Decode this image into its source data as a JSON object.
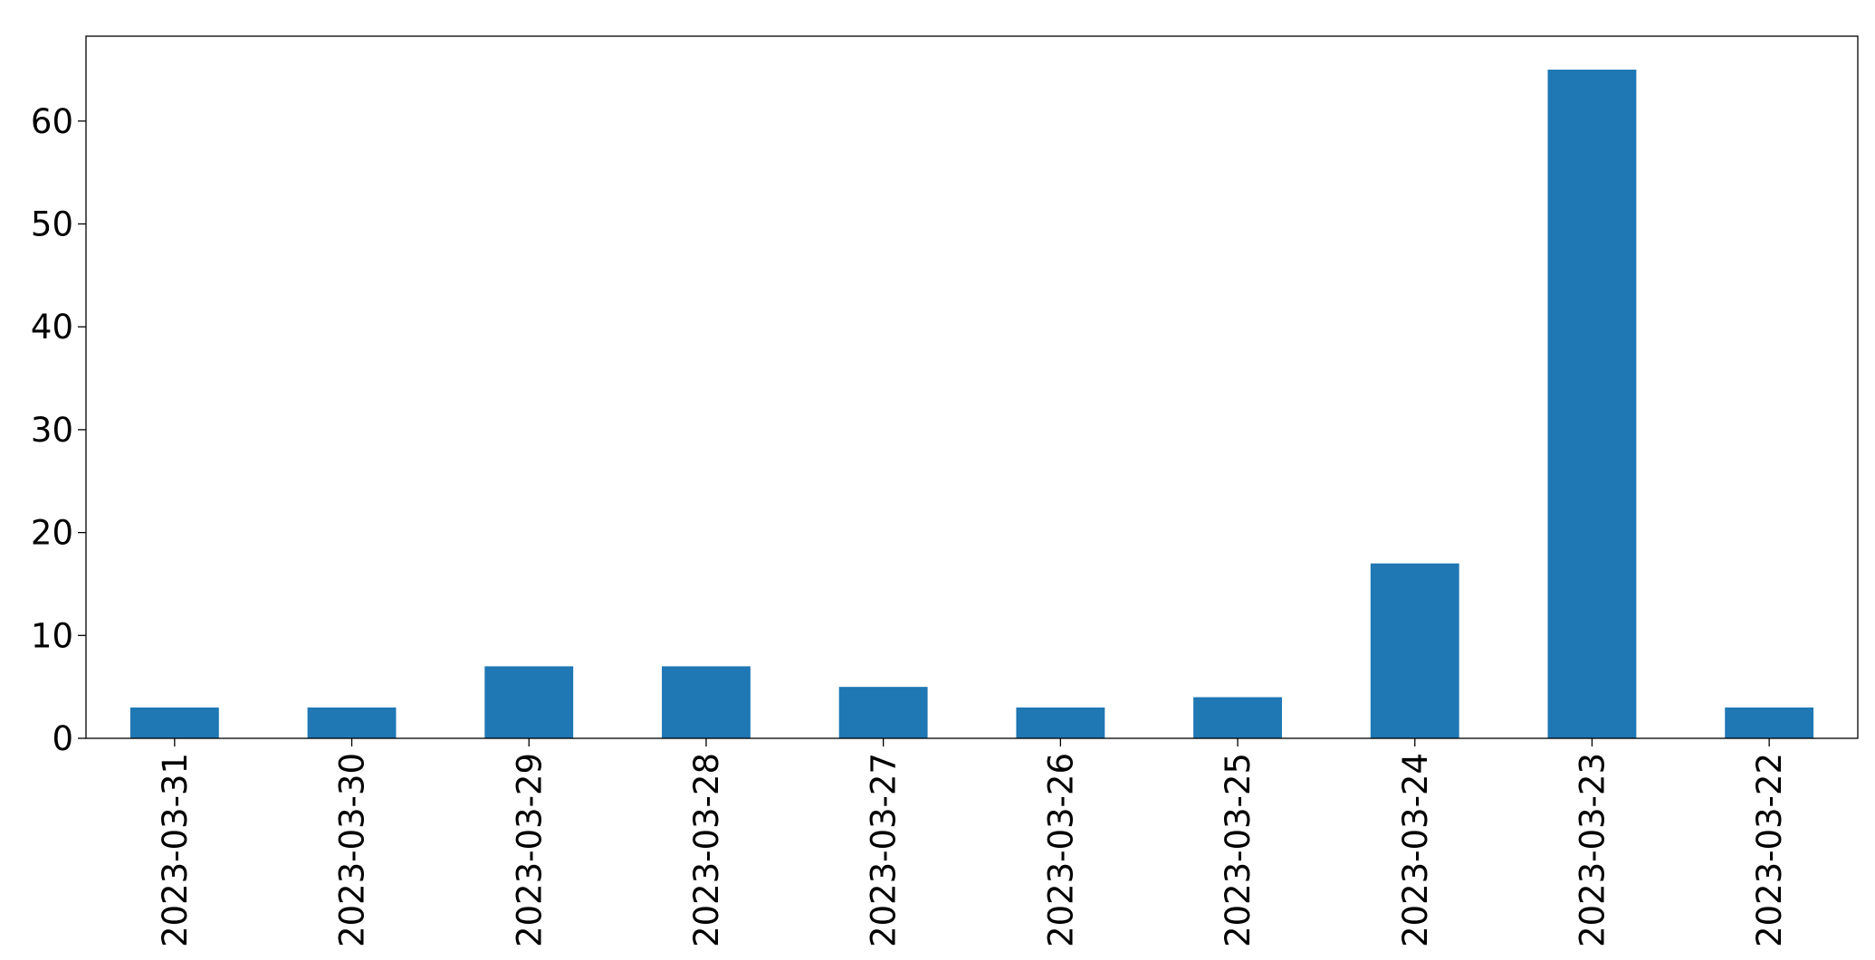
{
  "chart_data": {
    "type": "bar",
    "categories": [
      "2023-03-31",
      "2023-03-30",
      "2023-03-29",
      "2023-03-28",
      "2023-03-27",
      "2023-03-26",
      "2023-03-25",
      "2023-03-24",
      "2023-03-23",
      "2023-03-22"
    ],
    "values": [
      3,
      3,
      7,
      7,
      5,
      3,
      4,
      17,
      65,
      3
    ],
    "color": "#1f77b4",
    "ylim": [
      0,
      68.25
    ],
    "yticks": [
      0,
      10,
      20,
      30,
      40,
      50,
      60
    ],
    "grid": false
  }
}
